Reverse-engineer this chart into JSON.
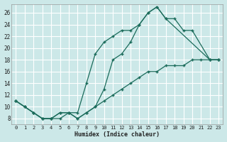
{
  "xlabel": "Humidex (Indice chaleur)",
  "bg_color": "#cce8e8",
  "grid_color": "#b0d0d0",
  "line_color": "#1a6b5a",
  "xlim": [
    -0.5,
    23.5
  ],
  "ylim": [
    7,
    27.5
  ],
  "xticks": [
    0,
    1,
    2,
    3,
    4,
    5,
    6,
    7,
    8,
    9,
    10,
    11,
    12,
    13,
    14,
    15,
    16,
    17,
    18,
    19,
    20,
    21,
    22,
    23
  ],
  "yticks": [
    8,
    10,
    12,
    14,
    16,
    18,
    20,
    22,
    24,
    26
  ],
  "line1_x": [
    0,
    1,
    2,
    3,
    4,
    5,
    6,
    7,
    8,
    9,
    10,
    11,
    12,
    13,
    14,
    15,
    16,
    17,
    22,
    23
  ],
  "line1_y": [
    11,
    10,
    9,
    8,
    8,
    9,
    9,
    8,
    9,
    10,
    13,
    18,
    19,
    21,
    24,
    26,
    27,
    25,
    18,
    18
  ],
  "line2_x": [
    0,
    1,
    2,
    3,
    4,
    5,
    6,
    7,
    8,
    9,
    10,
    11,
    12,
    13,
    14,
    15,
    16,
    17,
    18,
    19,
    20,
    22,
    23
  ],
  "line2_y": [
    11,
    10,
    9,
    8,
    8,
    9,
    9,
    9,
    14,
    19,
    21,
    22,
    23,
    23,
    24,
    26,
    27,
    25,
    25,
    23,
    23,
    18,
    18
  ],
  "line3_x": [
    0,
    1,
    2,
    3,
    4,
    5,
    6,
    7,
    8,
    9,
    10,
    11,
    12,
    13,
    14,
    15,
    16,
    17,
    18,
    19,
    20,
    21,
    22,
    23
  ],
  "line3_y": [
    11,
    10,
    9,
    8,
    8,
    8,
    9,
    8,
    9,
    10,
    11,
    12,
    13,
    14,
    15,
    16,
    16,
    17,
    17,
    17,
    18,
    18,
    18,
    18
  ]
}
